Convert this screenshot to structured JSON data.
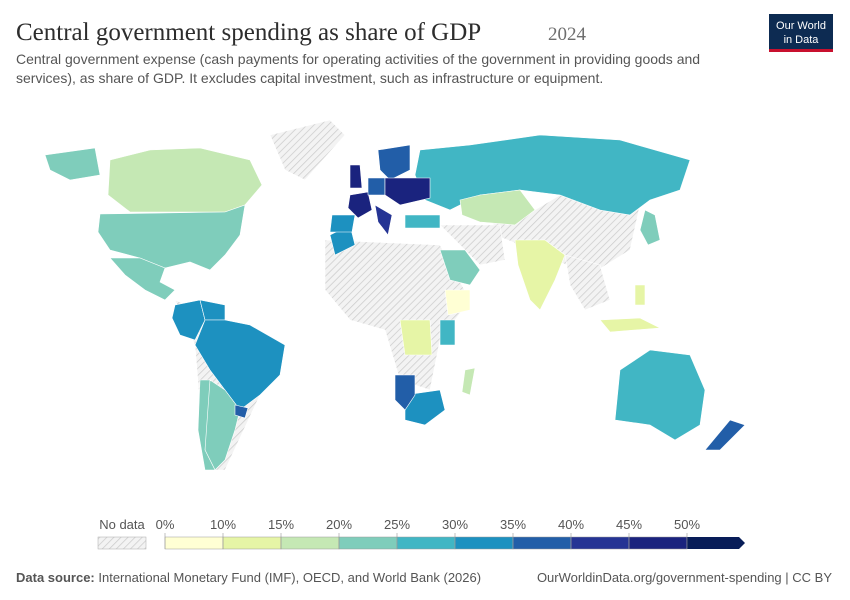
{
  "chart_data": {
    "type": "choropleth",
    "title": "Central government spending as share of GDP",
    "year": "2024",
    "subtitle": "Central government expense (cash payments for operating activities of the government in providing goods and services), as share of GDP. It excludes capital investment, such as infrastructure or equipment.",
    "logo": [
      "Our World",
      "in Data"
    ],
    "values": [
      17,
      22,
      22,
      30,
      30,
      32,
      22,
      22,
      27,
      17,
      13,
      22,
      22,
      27,
      37,
      32,
      36,
      25,
      30,
      45,
      32,
      38,
      45,
      35,
      45,
      40,
      27,
      14,
      14,
      38,
      12,
      8,
      17
    ],
    "legend": {
      "no_data_label": "No data",
      "ticks": [
        {
          "value": 0,
          "label": "0%"
        },
        {
          "value": 10,
          "label": "10%"
        },
        {
          "value": 15,
          "label": "15%"
        },
        {
          "value": 20,
          "label": "20%"
        },
        {
          "value": 25,
          "label": "25%"
        },
        {
          "value": 30,
          "label": "30%"
        },
        {
          "value": 35,
          "label": "35%"
        },
        {
          "value": 40,
          "label": "40%"
        },
        {
          "value": 45,
          "label": "45%"
        },
        {
          "value": 50,
          "label": "50%"
        }
      ],
      "colors": [
        "#ffffd4",
        "#e6f5a6",
        "#c5e8b4",
        "#7fcdbb",
        "#41b6c4",
        "#1d91c0",
        "#225ea8",
        "#253494",
        "#1a237e",
        "#081d58"
      ]
    },
    "source_label": "Data source:",
    "source": "International Monetary Fund (IMF), OECD, and World Bank (2026)",
    "url": "OurWorldinData.org/government-spending | CC BY"
  }
}
